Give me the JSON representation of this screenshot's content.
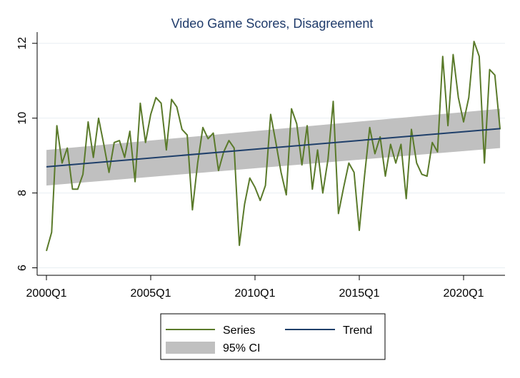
{
  "chart_data": {
    "type": "line",
    "title": "Video Game Scores, Disagreement",
    "xlabel": "",
    "ylabel": "",
    "x_ticks": [
      "2000Q1",
      "2005Q1",
      "2010Q1",
      "2015Q1",
      "2020Q1"
    ],
    "y_ticks": [
      "6",
      "8",
      "10",
      "12"
    ],
    "ylim": [
      5.8,
      12.3
    ],
    "x_start": "2000Q1",
    "x_end": "2021Q4",
    "series": [
      {
        "name": "Series",
        "color": "#5a7a2a",
        "values": [
          6.45,
          6.95,
          9.8,
          8.8,
          9.2,
          8.1,
          8.1,
          8.5,
          9.9,
          8.95,
          10.0,
          9.3,
          8.55,
          9.35,
          9.4,
          8.95,
          9.65,
          8.3,
          10.4,
          9.35,
          10.1,
          10.55,
          10.4,
          9.15,
          10.5,
          10.3,
          9.7,
          9.55,
          7.55,
          8.8,
          9.75,
          9.45,
          9.6,
          8.6,
          9.1,
          9.4,
          9.2,
          6.6,
          7.7,
          8.4,
          8.15,
          7.8,
          8.2,
          10.1,
          9.35,
          8.55,
          7.95,
          10.25,
          9.85,
          8.75,
          9.8,
          8.1,
          9.15,
          8.0,
          8.9,
          10.45,
          7.45,
          8.15,
          8.8,
          8.55,
          7.0,
          8.45,
          9.75,
          9.05,
          9.5,
          8.45,
          9.3,
          8.8,
          9.3,
          7.85,
          9.7,
          8.8,
          8.5,
          8.45,
          9.35,
          9.1,
          11.65,
          9.8,
          11.7,
          10.55,
          9.9,
          10.55,
          12.05,
          11.65,
          8.8,
          11.3,
          11.15,
          9.7
        ]
      },
      {
        "name": "Trend",
        "color": "#1f3f6a",
        "values_start_end": [
          8.7,
          9.72
        ]
      }
    ],
    "confidence_band": {
      "name": "95% CI",
      "color": "#c0c0c0",
      "lower_start_end": [
        8.2,
        9.2
      ],
      "upper_start_end": [
        9.15,
        10.25
      ]
    },
    "grid": true,
    "legend_position": "bottom"
  }
}
